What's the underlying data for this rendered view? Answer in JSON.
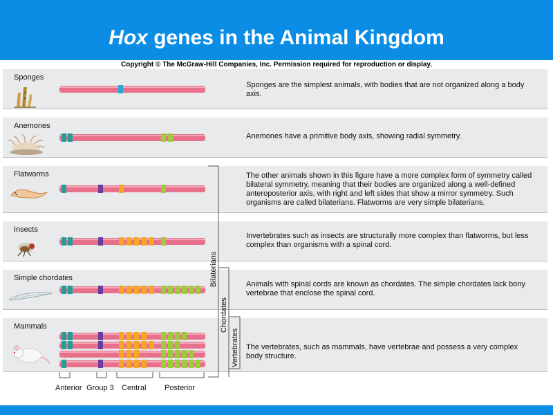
{
  "title": {
    "italic": "Hox",
    "rest": " genes in the Animal Kingdom"
  },
  "copyright": "Copyright © The McGraw-Hill Companies, Inc. Permission required for reproduction or display.",
  "colors": {
    "background": "#0b8de6",
    "chromosome": "#e8708a",
    "anterior": "#1f9e9a",
    "group3": "#6a3e9c",
    "central": "#f5a623",
    "posterior": "#9ccc3c",
    "sponge_gene": "#2aa8d8"
  },
  "rows": [
    {
      "label": "Sponges",
      "organism_icon": "sponge-icon",
      "description": "Sponges are the simplest animals, with bodies that are not organized along a body axis."
    },
    {
      "label": "Anemones",
      "organism_icon": "anemone-icon",
      "description": "Anemones have a primitive body axis, showing radial symmetry."
    },
    {
      "label": "Flatworms",
      "organism_icon": "flatworm-icon",
      "description": "The other animals shown in this figure have a more complex form of symmetry called bilateral symmetry, meaning that their bodies are organized along a well-defined anteroposterior axis, with right and left sides that show a mirror symmetry. Such organisms are called bilaterians. Flatworms are very simple bilaterians."
    },
    {
      "label": "Insects",
      "organism_icon": "insect-icon",
      "description": "Invertebrates such as insects are structurally more complex than flatworms, but less complex than organisms with a spinal cord."
    },
    {
      "label": "Simple chordates",
      "organism_icon": "chordate-icon",
      "description": "Animals with spinal cords are known as chordates. The simple chordates lack bony vertebrae that enclose the spinal cord."
    },
    {
      "label": "Mammals",
      "organism_icon": "mouse-icon",
      "description": "The vertebrates, such as mammals, have vertebrae and possess a very complex body structure."
    }
  ],
  "brackets": [
    "Bilaterians",
    "Chordates",
    "Vertebrates"
  ],
  "gene_groups": [
    "Anterior",
    "Group 3",
    "Central",
    "Posterior"
  ]
}
